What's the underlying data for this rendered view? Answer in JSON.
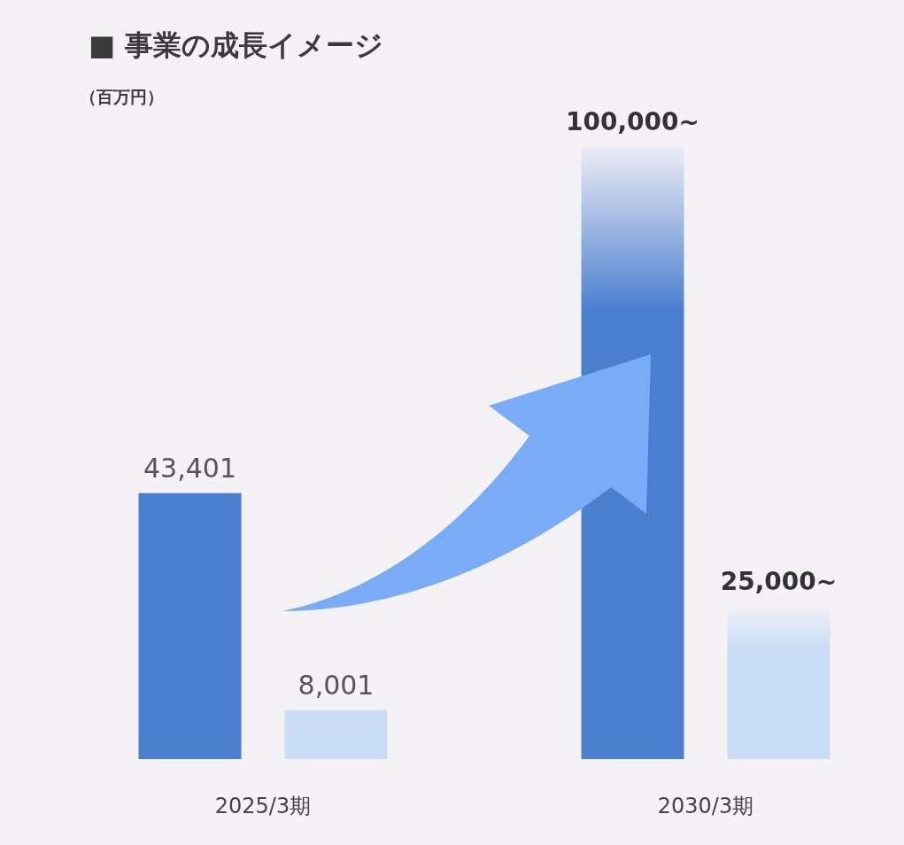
{
  "chart_data": {
    "type": "bar",
    "title": "■ 事業の成長イメージ",
    "ylabel": "（百万円）",
    "categories": [
      "2025/3期",
      "2030/3期"
    ],
    "series": [
      {
        "color": "#4a7fd0",
        "values": [
          43401,
          100000
        ],
        "value_labels": [
          "43,401",
          "100,000~"
        ]
      },
      {
        "color": "#c9ddf5",
        "values": [
          8001,
          25000
        ],
        "value_labels": [
          "8,001",
          "25,000~"
        ]
      }
    ]
  }
}
